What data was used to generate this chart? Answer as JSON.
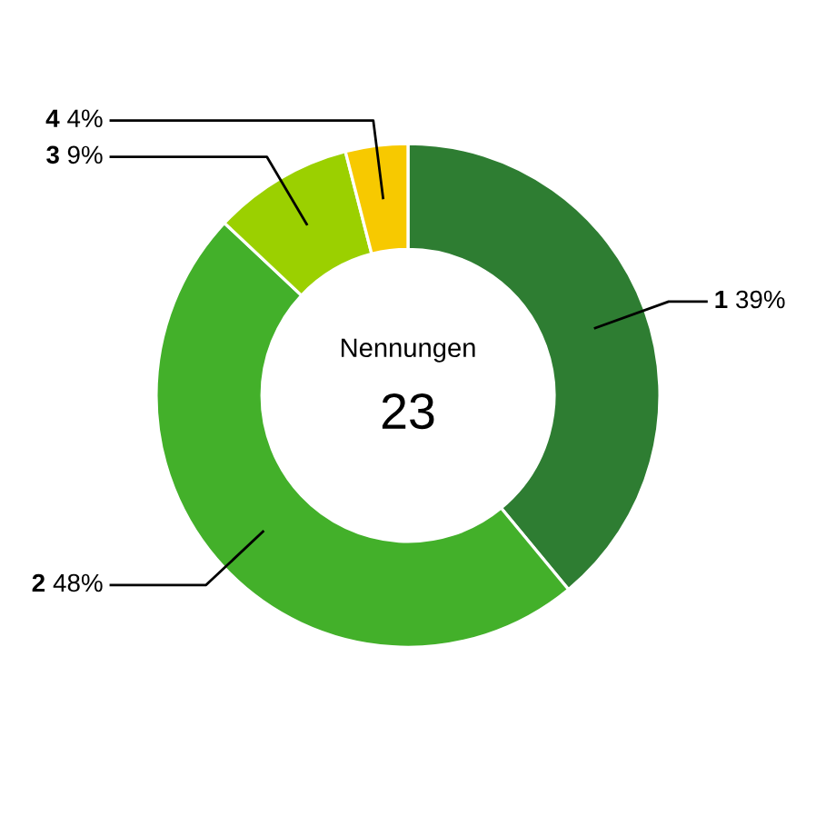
{
  "chart_data": {
    "type": "donut",
    "categories": [
      "1",
      "2",
      "3",
      "4"
    ],
    "values": [
      39,
      48,
      9,
      4
    ],
    "colors": [
      "#2e7d32",
      "#43b02a",
      "#9bd000",
      "#f7c900"
    ],
    "annotations": [
      "Nennungen",
      "23"
    ],
    "legend": false,
    "value_labels": [
      "39%",
      "48%",
      "9%",
      "4%"
    ]
  }
}
